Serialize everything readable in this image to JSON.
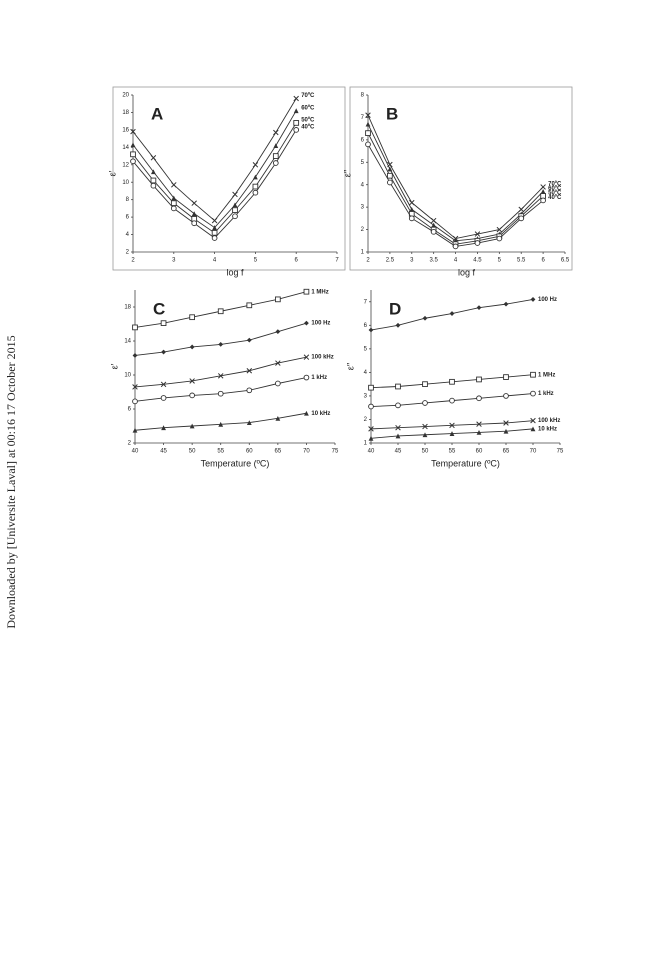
{
  "watermark": "Downloaded by [Universite Laval] at 00:16 17 October 2015",
  "chart_data": [
    {
      "type": "line",
      "panel_label": "A",
      "xlabel": "log f",
      "ylabel": "ε′",
      "x": [
        2,
        2.5,
        3,
        3.5,
        4,
        4.5,
        5,
        5.5,
        6
      ],
      "xlim": [
        2,
        7
      ],
      "xticks": [
        2,
        3,
        4,
        5,
        6,
        7
      ],
      "ylim": [
        2,
        20
      ],
      "yticks": [
        2,
        4,
        6,
        8,
        10,
        12,
        14,
        16,
        18,
        20
      ],
      "series": [
        {
          "name": "70ºC",
          "color": "#333333",
          "marker": "x",
          "values": [
            15.8,
            12.8,
            9.7,
            7.6,
            5.6,
            8.6,
            12,
            15.7,
            19.6
          ]
        },
        {
          "name": "60ºC",
          "color": "#333333",
          "marker": "triangle",
          "values": [
            14.3,
            11.2,
            8.2,
            6.4,
            4.8,
            7.4,
            10.6,
            14.2,
            18.2
          ]
        },
        {
          "name": "50ºC",
          "color": "#333333",
          "marker": "square",
          "values": [
            13.2,
            10.2,
            7.6,
            5.8,
            4.2,
            6.8,
            9.5,
            13,
            16.8
          ]
        },
        {
          "name": "40ºC",
          "color": "#333333",
          "marker": "circle",
          "values": [
            12.4,
            9.6,
            7,
            5.3,
            3.6,
            6.1,
            8.8,
            12.2,
            16
          ]
        }
      ]
    },
    {
      "type": "line",
      "panel_label": "B",
      "xlabel": "log f",
      "ylabel": "ε′′",
      "x": [
        2,
        2.5,
        3,
        3.5,
        4,
        4.5,
        5,
        5.5,
        6
      ],
      "xlim": [
        2,
        6.5
      ],
      "xticks": [
        2,
        2.5,
        3,
        3.5,
        4,
        4.5,
        5,
        5.5,
        6,
        6.5
      ],
      "ylim": [
        1,
        8
      ],
      "yticks": [
        1,
        2,
        3,
        4,
        5,
        6,
        7,
        8
      ],
      "series": [
        {
          "name": "70ºC",
          "color": "#333333",
          "marker": "x",
          "values": [
            7.1,
            4.9,
            3.2,
            2.4,
            1.6,
            1.8,
            2.0,
            2.9,
            3.9
          ]
        },
        {
          "name": "60ºC",
          "color": "#333333",
          "marker": "triangle",
          "values": [
            6.7,
            4.7,
            2.9,
            2.2,
            1.5,
            1.6,
            1.8,
            2.7,
            3.7
          ]
        },
        {
          "name": "50ºC",
          "color": "#333333",
          "marker": "square",
          "values": [
            6.3,
            4.4,
            2.7,
            2.0,
            1.35,
            1.5,
            1.7,
            2.6,
            3.5
          ]
        },
        {
          "name": "40ºC",
          "color": "#333333",
          "marker": "circle",
          "values": [
            5.8,
            4.1,
            2.5,
            1.9,
            1.25,
            1.4,
            1.6,
            2.5,
            3.3
          ]
        }
      ]
    },
    {
      "type": "line",
      "panel_label": "C",
      "xlabel": "Temperature (ºC)",
      "ylabel": "ε′",
      "x": [
        40,
        45,
        50,
        55,
        60,
        65,
        70
      ],
      "xlim": [
        40,
        75
      ],
      "xticks": [
        40,
        45,
        50,
        55,
        60,
        65,
        70,
        75
      ],
      "ylim": [
        2,
        20
      ],
      "yticks": [
        2,
        6,
        10,
        14,
        18
      ],
      "series": [
        {
          "name": "1 MHz",
          "color": "#333333",
          "marker": "square",
          "values": [
            15.6,
            16.1,
            16.8,
            17.5,
            18.2,
            18.9,
            19.8
          ]
        },
        {
          "name": "100 Hz",
          "color": "#333333",
          "marker": "diamond",
          "values": [
            12.3,
            12.7,
            13.3,
            13.6,
            14.1,
            15.1,
            16.1
          ]
        },
        {
          "name": "100 kHz",
          "color": "#333333",
          "marker": "x",
          "values": [
            8.6,
            8.9,
            9.3,
            9.9,
            10.5,
            11.4,
            12.1
          ]
        },
        {
          "name": "1 kHz",
          "color": "#333333",
          "marker": "circle",
          "values": [
            6.9,
            7.3,
            7.6,
            7.8,
            8.2,
            9.0,
            9.7
          ]
        },
        {
          "name": "10 kHz",
          "color": "#333333",
          "marker": "triangle",
          "values": [
            3.5,
            3.8,
            4.0,
            4.2,
            4.4,
            4.9,
            5.5
          ]
        }
      ]
    },
    {
      "type": "line",
      "panel_label": "D",
      "xlabel": "Temperature (ºC)",
      "ylabel": "ε′′",
      "x": [
        40,
        45,
        50,
        55,
        60,
        65,
        70
      ],
      "xlim": [
        40,
        75
      ],
      "xticks": [
        40,
        45,
        50,
        55,
        60,
        65,
        70,
        75
      ],
      "ylim": [
        1,
        7.5
      ],
      "yticks": [
        1,
        2,
        3,
        4,
        5,
        6,
        7
      ],
      "series": [
        {
          "name": "100 Hz",
          "color": "#333333",
          "marker": "diamond",
          "values": [
            5.8,
            6.0,
            6.3,
            6.5,
            6.75,
            6.9,
            7.1
          ]
        },
        {
          "name": "1 MHz",
          "color": "#333333",
          "marker": "square",
          "values": [
            3.35,
            3.4,
            3.5,
            3.6,
            3.7,
            3.8,
            3.9
          ]
        },
        {
          "name": "1 kHz",
          "color": "#333333",
          "marker": "circle",
          "values": [
            2.55,
            2.6,
            2.7,
            2.8,
            2.9,
            3.0,
            3.1
          ]
        },
        {
          "name": "100 kHz",
          "color": "#333333",
          "marker": "x",
          "values": [
            1.6,
            1.65,
            1.7,
            1.75,
            1.8,
            1.85,
            1.95
          ]
        },
        {
          "name": "10 kHz",
          "color": "#333333",
          "marker": "triangle",
          "values": [
            1.2,
            1.3,
            1.35,
            1.4,
            1.45,
            1.5,
            1.6
          ]
        }
      ]
    }
  ]
}
